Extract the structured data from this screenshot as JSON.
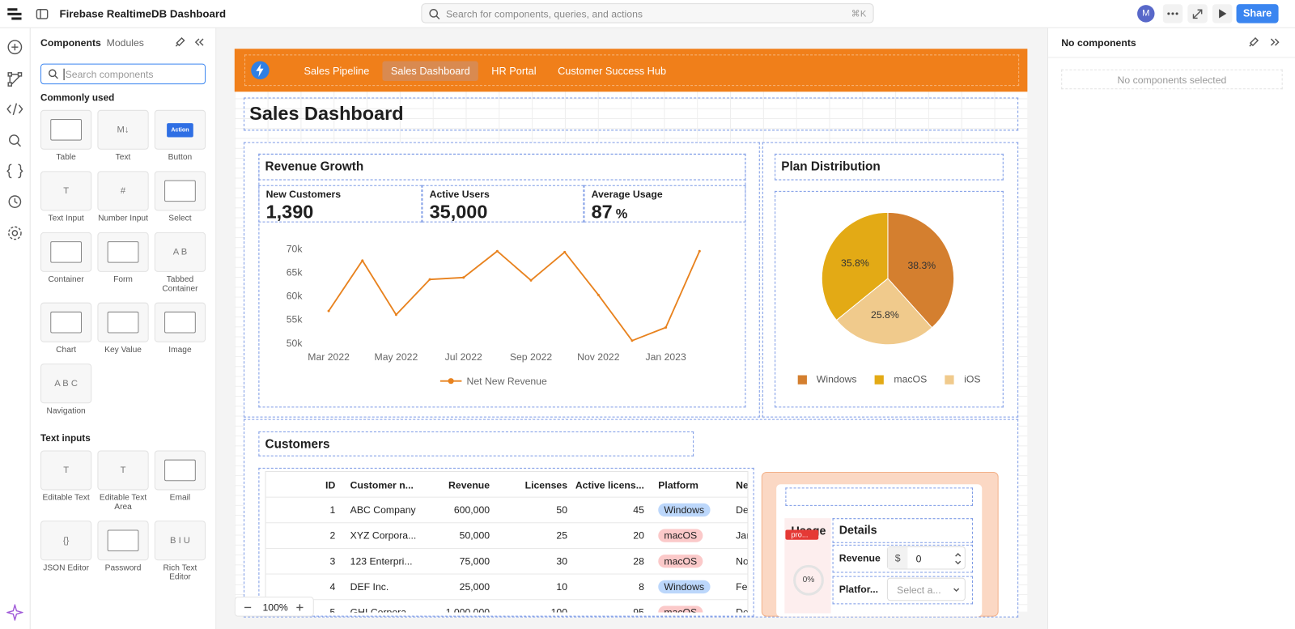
{
  "app": {
    "title": "Firebase RealtimeDB Dashboard",
    "search_placeholder": "Search for components, queries, and actions",
    "search_shortcut": "⌘K",
    "avatar": "M",
    "share": "Share"
  },
  "left_panel": {
    "tabs": [
      "Components",
      "Modules"
    ],
    "search_placeholder": "Search components",
    "sections": [
      {
        "title": "Commonly used",
        "items": [
          {
            "label": "Table"
          },
          {
            "label": "Text",
            "icon": "M↓"
          },
          {
            "label": "Button",
            "icon": "Action",
            "icon_pill": true
          },
          {
            "label": "Text Input",
            "icon": "T"
          },
          {
            "label": "Number Input",
            "icon": "#"
          },
          {
            "label": "Select"
          },
          {
            "label": "Container"
          },
          {
            "label": "Form"
          },
          {
            "label": "Tabbed Container",
            "icon": "A B"
          },
          {
            "label": "Chart"
          },
          {
            "label": "Key Value"
          },
          {
            "label": "Image"
          },
          {
            "label": "Navigation",
            "icon": "A B C"
          }
        ]
      },
      {
        "title": "Text inputs",
        "items": [
          {
            "label": "Editable Text",
            "icon": "T"
          },
          {
            "label": "Editable Text Area",
            "icon": "T"
          },
          {
            "label": "Email"
          },
          {
            "label": "JSON Editor",
            "icon": "{}"
          },
          {
            "label": "Password"
          },
          {
            "label": "Rich Text Editor",
            "icon": "B I U"
          }
        ]
      }
    ]
  },
  "canvas": {
    "nav": {
      "items": [
        "Sales Pipeline",
        "Sales Dashboard",
        "HR Portal",
        "Customer Success Hub"
      ],
      "selected": 1
    },
    "page_title": "Sales Dashboard",
    "revenue": {
      "title": "Revenue Growth",
      "stats": [
        {
          "label": "New Customers",
          "value": "1,390"
        },
        {
          "label": "Active Users",
          "value": "35,000"
        },
        {
          "label": "Average Usage",
          "value": "87",
          "unit": "%"
        }
      ]
    },
    "plan": {
      "title": "Plan Distribution"
    },
    "customers": {
      "title": "Customers",
      "columns": [
        "ID",
        "Customer n...",
        "Revenue",
        "Licenses",
        "Active licens...",
        "Platform",
        "Ne"
      ],
      "rows": [
        [
          "1",
          "ABC Company",
          "600,000",
          "50",
          "45",
          "Windows",
          "Dec"
        ],
        [
          "2",
          "XYZ Corpora...",
          "50,000",
          "25",
          "20",
          "macOS",
          "Jan"
        ],
        [
          "3",
          "123 Enterpri...",
          "75,000",
          "30",
          "28",
          "macOS",
          "Nov"
        ],
        [
          "4",
          "DEF Inc.",
          "25,000",
          "10",
          "8",
          "Windows",
          "Feb"
        ],
        [
          "5",
          "GHI Corpora...",
          "1,000,000",
          "100",
          "95",
          "macOS",
          "De"
        ]
      ],
      "badge_colors": {
        "Windows": "#bcd7fb",
        "macOS": "#fbc9c9"
      }
    },
    "details": {
      "usage_title": "Usage",
      "badge": "pro...",
      "progress": "0%",
      "title": "Details",
      "fields": [
        {
          "label": "Revenue",
          "prefix": "$",
          "value": "0"
        },
        {
          "label": "Platfor...",
          "placeholder": "Select a..."
        }
      ]
    },
    "zoom": "100%"
  },
  "chart_data": [
    {
      "type": "line",
      "categories": [
        "Mar 2022",
        null,
        "May 2022",
        null,
        "Jul 2022",
        null,
        "Sep 2022",
        null,
        "Nov 2022",
        null,
        "Jan 2023",
        null
      ],
      "series": [
        {
          "name": "Net New Revenue",
          "color": "#e8821e",
          "values": [
            56800,
            67500,
            56000,
            63500,
            63900,
            69500,
            63300,
            69300,
            60200,
            50500,
            53300,
            69500
          ]
        }
      ],
      "ylim": [
        50000,
        70000
      ],
      "yticks": [
        {
          "value": 50000,
          "label": "50k"
        },
        {
          "value": 55000,
          "label": "55k"
        },
        {
          "value": 60000,
          "label": "60k"
        },
        {
          "value": 65000,
          "label": "65k"
        },
        {
          "value": 70000,
          "label": "70k"
        }
      ]
    },
    {
      "type": "pie",
      "categories": [
        "Windows",
        "macOS",
        "iOS"
      ],
      "values": [
        38.3,
        35.8,
        25.8
      ],
      "value_labels": [
        "38.3%",
        "35.8%",
        "25.8%"
      ],
      "colors": [
        "#d47f2f",
        "#e3aa15",
        "#f0ca8c"
      ]
    }
  ],
  "right_panel": {
    "title": "No components",
    "empty": "No components selected"
  }
}
